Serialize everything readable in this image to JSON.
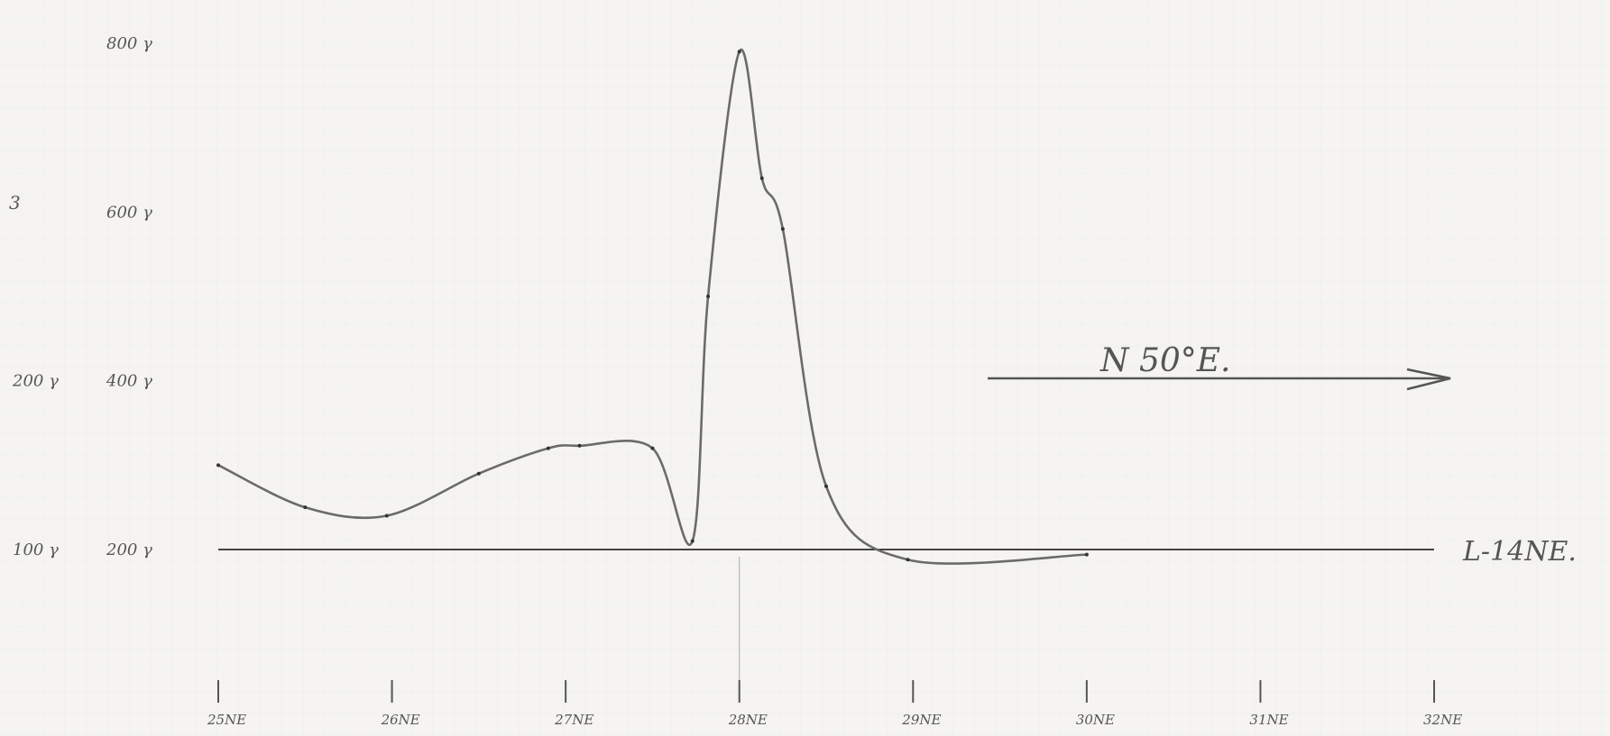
{
  "chart_data": {
    "type": "line",
    "line_label": "L-14NE.",
    "bearing_label": "N 50°E.",
    "x_ticks": [
      "25NE",
      "26NE",
      "27NE",
      "28NE",
      "29NE",
      "30NE",
      "31NE",
      "32NE"
    ],
    "y_ticks_primary": [
      {
        "label": "200 γ",
        "value": 200
      },
      {
        "label": "400 γ",
        "value": 400
      },
      {
        "label": "600 γ",
        "value": 600
      },
      {
        "label": "800 γ",
        "value": 800
      }
    ],
    "y_ticks_secondary": [
      {
        "label": "100 γ",
        "value": 200
      },
      {
        "label": "200 γ",
        "value": 400
      }
    ],
    "y_side_mark": "3",
    "xlim": [
      25,
      32
    ],
    "ylim": [
      200,
      800
    ],
    "series": [
      {
        "x": [
          25.0,
          25.5,
          25.97,
          26.5,
          26.9,
          27.08,
          27.5,
          27.73,
          27.82,
          28.0,
          28.13,
          28.25,
          28.5,
          28.97,
          30.0
        ],
        "y": [
          300,
          250,
          240,
          290,
          320,
          323,
          320,
          210,
          500,
          790,
          640,
          580,
          275,
          188,
          194
        ]
      }
    ],
    "colors": {
      "line": "#6b6b6b",
      "baseline": "#2a2a2a",
      "paper": "#f5f4f0",
      "grid": "#d8d8d8"
    }
  }
}
